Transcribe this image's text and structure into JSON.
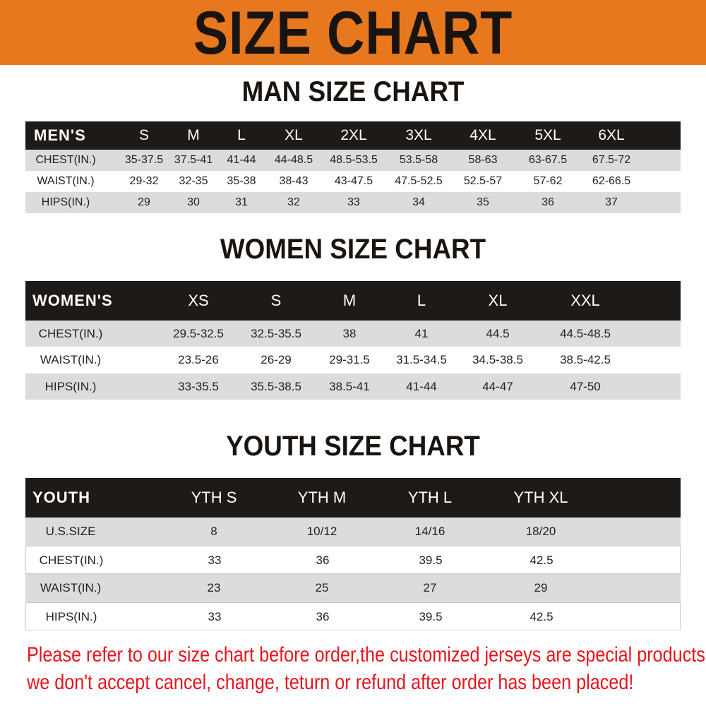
{
  "title": "SIZE CHART",
  "colors": {
    "banner": "#e8781e",
    "header_row": "#1e1a17",
    "stripe": "#dcdcdc",
    "notice": "#e8141c"
  },
  "men": {
    "title": "MAN SIZE CHART",
    "header": [
      "MEN'S",
      "S",
      "M",
      "L",
      "XL",
      "2XL",
      "3XL",
      "4XL",
      "5XL",
      "6XL"
    ],
    "rows": [
      [
        "CHEST(IN.)",
        "35-37.5",
        "37.5-41",
        "41-44",
        "44-48.5",
        "48.5-53.5",
        "53.5-58",
        "58-63",
        "63-67.5",
        "67.5-72"
      ],
      [
        "WAIST(IN.)",
        "29-32",
        "32-35",
        "35-38",
        "38-43",
        "43-47.5",
        "47.5-52.5",
        "52.5-57",
        "57-62",
        "62-66.5"
      ],
      [
        "HIPS(IN.)",
        "29",
        "30",
        "31",
        "32",
        "33",
        "34",
        "35",
        "36",
        "37"
      ]
    ]
  },
  "women": {
    "title": "WOMEN SIZE CHART",
    "header": [
      "WOMEN'S",
      "XS",
      "S",
      "M",
      "L",
      "XL",
      "XXL"
    ],
    "rows": [
      [
        "CHEST(IN.)",
        "29.5-32.5",
        "32.5-35.5",
        "38",
        "41",
        "44.5",
        "44.5-48.5"
      ],
      [
        "WAIST(IN.)",
        "23.5-26",
        "26-29",
        "29-31.5",
        "31.5-34.5",
        "34.5-38.5",
        "38.5-42.5"
      ],
      [
        "HIPS(IN.)",
        "33-35.5",
        "35.5-38.5",
        "38.5-41",
        "41-44",
        "44-47",
        "47-50"
      ]
    ]
  },
  "youth": {
    "title": "YOUTH SIZE CHART",
    "header": [
      "YOUTH",
      "YTH S",
      "YTH M",
      "YTH L",
      "YTH XL"
    ],
    "rows": [
      [
        "U.S.SIZE",
        "8",
        "10/12",
        "14/16",
        "18/20"
      ],
      [
        "CHEST(IN.)",
        "33",
        "36",
        "39.5",
        "42.5"
      ],
      [
        "WAIST(IN.)",
        "23",
        "25",
        "27",
        "29"
      ],
      [
        "HIPS(IN.)",
        "33",
        "36",
        "39.5",
        "42.5"
      ]
    ]
  },
  "notice": [
    "Please refer to our size chart before order,the customized jerseys are special products,",
    "we don't accept cancel, change, teturn or refund after order has been placed!"
  ]
}
